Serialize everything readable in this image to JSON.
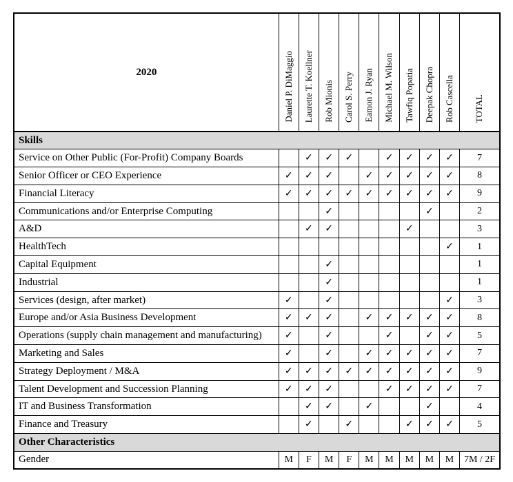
{
  "colors": {
    "section_header_bg": "#d9d9d9",
    "border": "#000000"
  },
  "check_glyph": "✓",
  "table": {
    "year_label": "2020",
    "total_label": "TOTAL",
    "members": [
      "Daniel P. DiMaggio",
      "Laurette T. Koellner",
      "Rob Mionis",
      "Carol S. Perry",
      "Eamon J. Ryan",
      "Michael M. Wilson",
      "Tawfiq Popatia",
      "Deepak Chopra",
      "Rob Cascella"
    ],
    "sections": [
      {
        "title": "Skills",
        "rows": [
          {
            "label": "Service on Other Public (For-Profit) Company Boards",
            "values": [
              "",
              "✓",
              "✓",
              "✓",
              "",
              "✓",
              "✓",
              "✓",
              "✓"
            ],
            "total": "7"
          },
          {
            "label": "Senior Officer or CEO Experience",
            "values": [
              "✓",
              "✓",
              "✓",
              "",
              "✓",
              "✓",
              "✓",
              "✓",
              "✓"
            ],
            "total": "8"
          },
          {
            "label": "Financial Literacy",
            "values": [
              "✓",
              "✓",
              "✓",
              "✓",
              "✓",
              "✓",
              "✓",
              "✓",
              "✓"
            ],
            "total": "9"
          },
          {
            "label": "Communications and/or Enterprise Computing",
            "values": [
              "",
              "",
              "✓",
              "",
              "",
              "",
              "",
              "✓",
              ""
            ],
            "total": "2"
          },
          {
            "label": "A&D",
            "values": [
              "",
              "✓",
              "✓",
              "",
              "",
              "",
              "✓",
              "",
              ""
            ],
            "total": "3"
          },
          {
            "label": "HealthTech",
            "values": [
              "",
              "",
              "",
              "",
              "",
              "",
              "",
              "",
              "✓"
            ],
            "total": "1"
          },
          {
            "label": "Capital Equipment",
            "values": [
              "",
              "",
              "✓",
              "",
              "",
              "",
              "",
              "",
              ""
            ],
            "total": "1"
          },
          {
            "label": "Industrial",
            "values": [
              "",
              "",
              "✓",
              "",
              "",
              "",
              "",
              "",
              ""
            ],
            "total": "1"
          },
          {
            "label": "Services (design, after market)",
            "values": [
              "✓",
              "",
              "✓",
              "",
              "",
              "",
              "",
              "",
              "✓"
            ],
            "total": "3"
          },
          {
            "label": "Europe and/or Asia Business Development",
            "values": [
              "✓",
              "✓",
              "✓",
              "",
              "✓",
              "✓",
              "✓",
              "✓",
              "✓"
            ],
            "total": "8"
          },
          {
            "label": "Operations (supply chain management and manufacturing)",
            "values": [
              "✓",
              "",
              "✓",
              "",
              "",
              "✓",
              "",
              "✓",
              "✓"
            ],
            "total": "5"
          },
          {
            "label": "Marketing and Sales",
            "values": [
              "✓",
              "",
              "✓",
              "",
              "✓",
              "✓",
              "✓",
              "✓",
              "✓"
            ],
            "total": "7"
          },
          {
            "label": "Strategy Deployment / M&A",
            "values": [
              "✓",
              "✓",
              "✓",
              "✓",
              "✓",
              "✓",
              "✓",
              "✓",
              "✓"
            ],
            "total": "9"
          },
          {
            "label": "Talent Development and Succession Planning",
            "values": [
              "✓",
              "✓",
              "✓",
              "",
              "",
              "✓",
              "✓",
              "✓",
              "✓"
            ],
            "total": "7"
          },
          {
            "label": "IT and Business Transformation",
            "values": [
              "",
              "✓",
              "✓",
              "",
              "✓",
              "",
              "",
              "✓",
              ""
            ],
            "total": "4"
          },
          {
            "label": "Finance and Treasury",
            "values": [
              "",
              "✓",
              "",
              "✓",
              "",
              "",
              "✓",
              "✓",
              "✓"
            ],
            "total": "5"
          }
        ]
      },
      {
        "title": "Other Characteristics",
        "rows": [
          {
            "label": "Gender",
            "values": [
              "M",
              "F",
              "M",
              "F",
              "M",
              "M",
              "M",
              "M",
              "M"
            ],
            "total": "7M / 2F"
          }
        ]
      }
    ]
  }
}
